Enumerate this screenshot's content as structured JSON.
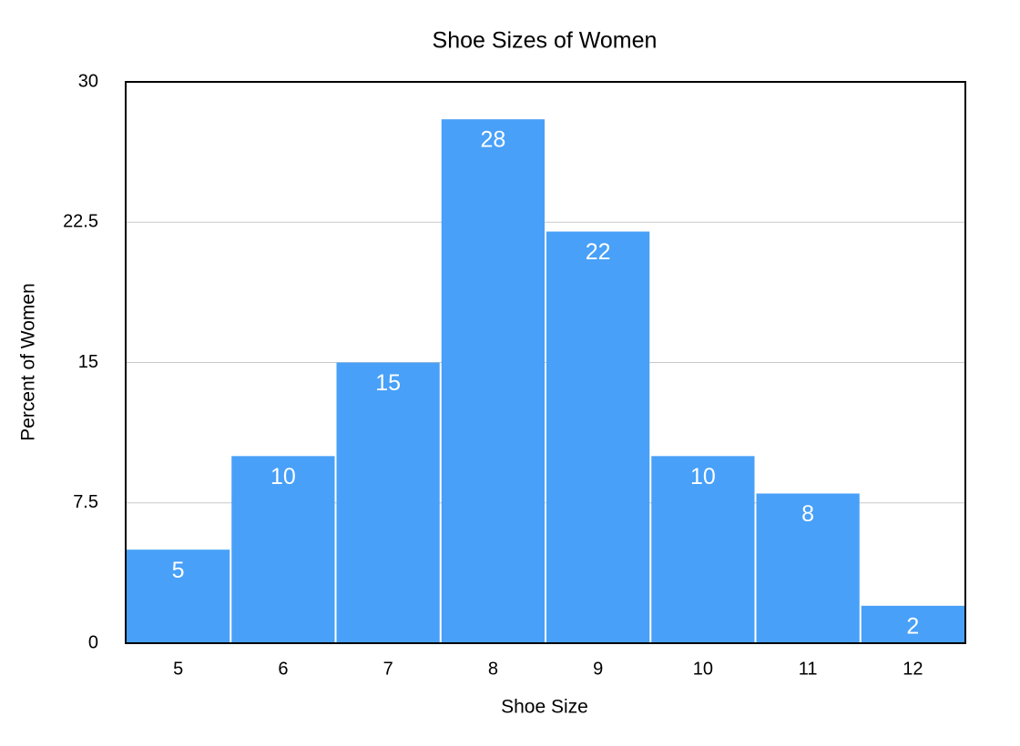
{
  "chart_data": {
    "type": "bar",
    "title": "Shoe Sizes of Women",
    "x_label": "Shoe Size",
    "y_label": "Percent of Women",
    "categories": [
      "5",
      "6",
      "7",
      "8",
      "9",
      "10",
      "11",
      "12"
    ],
    "values": [
      5,
      10,
      15,
      28,
      22,
      10,
      8,
      2
    ],
    "color": "#48a0f8",
    "ylim": [
      0,
      30
    ],
    "yticks": [
      0,
      7.5,
      15,
      22.5,
      30
    ],
    "grid": true
  }
}
